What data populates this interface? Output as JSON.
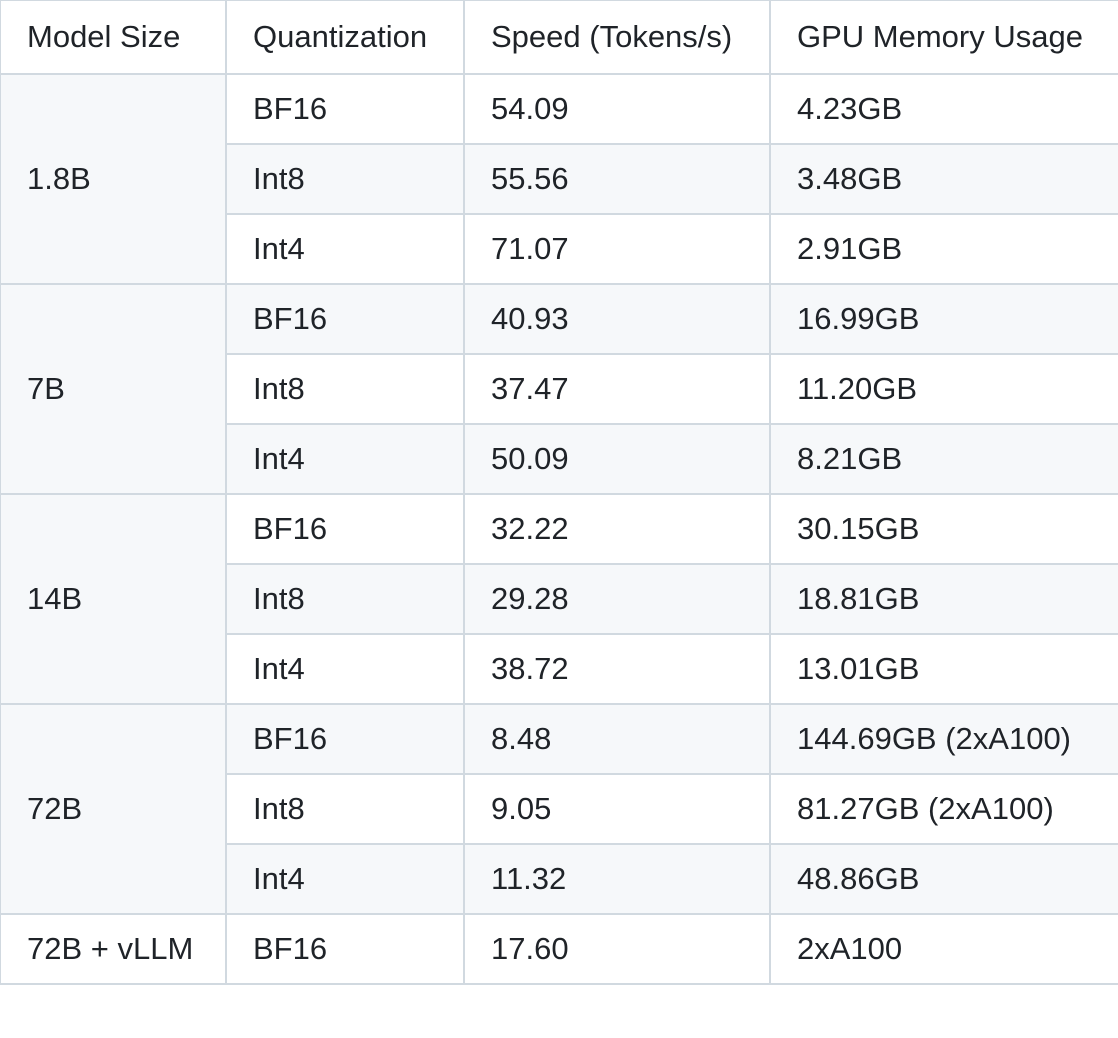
{
  "table": {
    "headers": [
      "Model Size",
      "Quantization",
      "Speed (Tokens/s)",
      "GPU Memory Usage"
    ],
    "groups": [
      {
        "model_size": "1.8B",
        "rows": [
          {
            "quantization": "BF16",
            "speed": "54.09",
            "memory": "4.23GB"
          },
          {
            "quantization": "Int8",
            "speed": "55.56",
            "memory": "3.48GB"
          },
          {
            "quantization": "Int4",
            "speed": "71.07",
            "memory": "2.91GB"
          }
        ]
      },
      {
        "model_size": "7B",
        "rows": [
          {
            "quantization": "BF16",
            "speed": "40.93",
            "memory": "16.99GB"
          },
          {
            "quantization": "Int8",
            "speed": "37.47",
            "memory": "11.20GB"
          },
          {
            "quantization": "Int4",
            "speed": "50.09",
            "memory": "8.21GB"
          }
        ]
      },
      {
        "model_size": "14B",
        "rows": [
          {
            "quantization": "BF16",
            "speed": "32.22",
            "memory": "30.15GB"
          },
          {
            "quantization": "Int8",
            "speed": "29.28",
            "memory": "18.81GB"
          },
          {
            "quantization": "Int4",
            "speed": "38.72",
            "memory": "13.01GB"
          }
        ]
      },
      {
        "model_size": "72B",
        "rows": [
          {
            "quantization": "BF16",
            "speed": "8.48",
            "memory": "144.69GB (2xA100)"
          },
          {
            "quantization": "Int8",
            "speed": "9.05",
            "memory": "81.27GB (2xA100)"
          },
          {
            "quantization": "Int4",
            "speed": "11.32",
            "memory": "48.86GB"
          }
        ]
      },
      {
        "model_size": "72B + vLLM",
        "rows": [
          {
            "quantization": "BF16",
            "speed": "17.60",
            "memory": "2xA100"
          }
        ]
      }
    ]
  }
}
